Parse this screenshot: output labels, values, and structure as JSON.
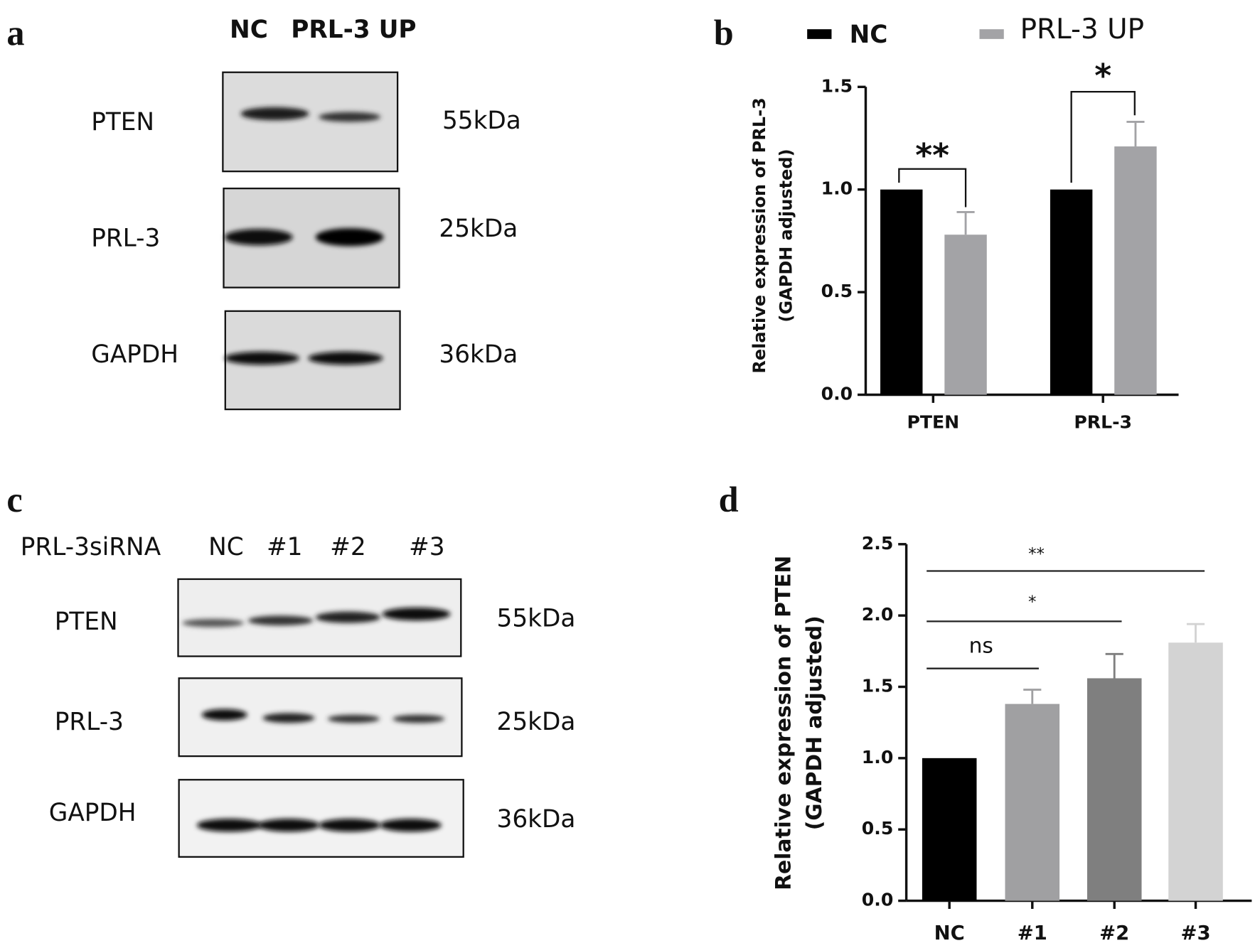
{
  "blots": [
    {
      "panel": "a",
      "lanes": [
        "NC",
        "PRL-3 UP"
      ],
      "rows": [
        {
          "protein": "PTEN",
          "size": "55kDa"
        },
        {
          "protein": "PRL-3",
          "size": "25kDa"
        },
        {
          "protein": "GAPDH",
          "size": "36kDa"
        }
      ]
    },
    {
      "panel": "c",
      "group": "PRL-3siRNA",
      "lanes": [
        "NC",
        "#1",
        "#2",
        "#3"
      ],
      "rows": [
        {
          "protein": "PTEN",
          "size": "55kDa"
        },
        {
          "protein": "PRL-3",
          "size": "25kDa"
        },
        {
          "protein": "GAPDH",
          "size": "36kDa"
        }
      ]
    }
  ],
  "chart_data": [
    {
      "panel": "b",
      "type": "bar",
      "ylabel": [
        "Relative  expression of PRL-3",
        "(GAPDH adjusted)"
      ],
      "categories": [
        "PTEN",
        "PRL-3"
      ],
      "series": [
        {
          "name": "NC",
          "color": "#000000",
          "values": [
            1,
            1
          ]
        },
        {
          "name": "PRL-3 UP",
          "color": "#a3a3a6",
          "values": [
            0.78,
            1.21
          ],
          "errors": [
            0.11,
            0.12
          ]
        }
      ],
      "ylim": [
        0,
        1.5
      ],
      "yticks": [
        {
          "value": 0,
          "label": "0.0"
        },
        0.5,
        {
          "value": 1,
          "label": "1.0"
        },
        1.5
      ],
      "legend": "top",
      "annotations": [
        "**",
        "*"
      ]
    },
    {
      "panel": "d",
      "type": "bar",
      "ylabel": [
        "Relative  expression of PTEN",
        "(GAPDH adjusted)"
      ],
      "categories": [
        "NC",
        "#1",
        "#2",
        "#3"
      ],
      "values": [
        1,
        1.38,
        1.56,
        1.81
      ],
      "errors": [
        null,
        0.1,
        0.17,
        0.13
      ],
      "colors": [
        "#000000",
        "#a0a0a2",
        "#7f7f7f",
        "#d3d3d3"
      ],
      "ylim": [
        0,
        2.5
      ],
      "yticks": [
        {
          "value": 0,
          "label": "0.0"
        },
        0.5,
        {
          "value": 1,
          "label": "1.0"
        },
        1.5,
        {
          "value": 2,
          "label": "2.0"
        },
        2.5
      ],
      "annotations": [
        "ns",
        "*",
        "**"
      ]
    }
  ]
}
